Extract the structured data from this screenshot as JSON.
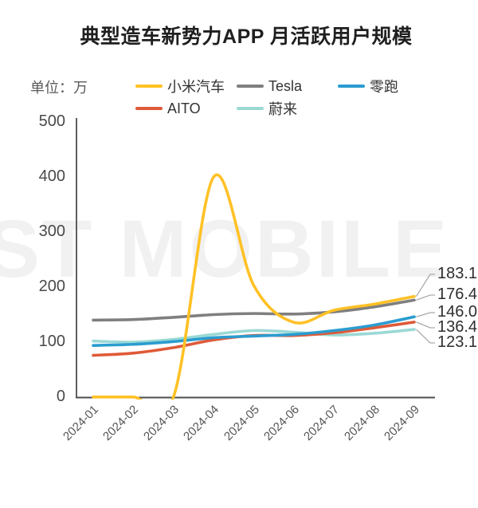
{
  "title": "典型造车新势力APP 月活跃用户规模",
  "unit_label": "单位：万",
  "watermark": "ST MOBILE",
  "colors": {
    "axis": "#4d4d4d",
    "leader_line": "#aaaaaa",
    "watermark": "#f1f1f1"
  },
  "chart_data": {
    "type": "line",
    "title": "典型造车新势力APP 月活跃用户规模",
    "xlabel": "",
    "ylabel": "单位：万",
    "x": [
      "2024-01",
      "2024-02",
      "2024-03",
      "2024-04",
      "2024-05",
      "2024-06",
      "2024-07",
      "2024-08",
      "2024-09"
    ],
    "yticks": [
      0,
      100,
      200,
      300,
      400,
      500
    ],
    "ylim": [
      0,
      500
    ],
    "grid": false,
    "smooth": true,
    "legend_position": "top",
    "series": [
      {
        "name": "小米汽车",
        "color": "#FFC125",
        "values": [
          0.3,
          0.3,
          0.3,
          400,
          203,
          136,
          158,
          169,
          183.1
        ],
        "end_label": "183.1"
      },
      {
        "name": "Tesla",
        "color": "#7F7F7F",
        "values": [
          140,
          141,
          145,
          150,
          152,
          151,
          155,
          164,
          176.4
        ],
        "end_label": "176.4"
      },
      {
        "name": "零跑",
        "color": "#2B9CD0",
        "values": [
          94,
          96,
          101,
          108,
          111,
          114,
          121,
          131,
          146.0
        ],
        "end_label": "146.0"
      },
      {
        "name": "AITO",
        "color": "#DF5A38",
        "values": [
          76,
          80,
          90,
          104,
          112,
          112,
          117,
          126,
          136.4
        ],
        "end_label": "136.4"
      },
      {
        "name": "蔚来",
        "color": "#9BD9D5",
        "values": [
          102,
          100,
          105,
          114,
          121,
          118,
          113,
          116,
          123.1
        ],
        "end_label": "123.1"
      }
    ]
  }
}
